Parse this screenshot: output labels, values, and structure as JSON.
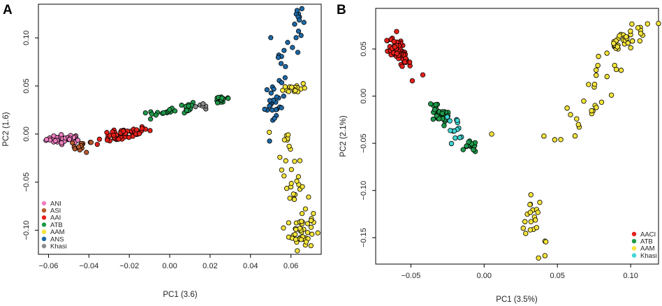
{
  "figure": {
    "panel_labels": [
      "A",
      "B"
    ]
  },
  "chart_data": [
    {
      "type": "scatter",
      "panel": "A",
      "xlabel": "PC1 (3.6)",
      "ylabel": "PC2 (1.6)",
      "xlim": [
        -0.065,
        0.075
      ],
      "ylim": [
        -0.125,
        0.135
      ],
      "xticks": [
        -0.06,
        -0.04,
        -0.02,
        0.0,
        0.02,
        0.04,
        0.06
      ],
      "xtick_labels": [
        "−0.06",
        "−0.04",
        "−0.02",
        "0.00",
        "0.02",
        "0.04",
        "0.06"
      ],
      "yticks": [
        -0.1,
        -0.05,
        0.0,
        0.05,
        0.1
      ],
      "ytick_labels": [
        "−0.10",
        "−0.05",
        "0.00",
        "0.05",
        "0.10"
      ],
      "legend_position": "bottom-left",
      "series": [
        {
          "name": "ANI",
          "color": "#f07fc1",
          "clusters": [
            {
              "cx": -0.052,
              "cy": -0.005,
              "sx": 0.0045,
              "sy": 0.0022,
              "n": 40,
              "trend": 0.05
            }
          ]
        },
        {
          "name": "ASI",
          "color": "#b85a2e",
          "clusters": [
            {
              "cx": -0.043,
              "cy": -0.013,
              "sx": 0.0025,
              "sy": 0.003,
              "n": 14,
              "trend": 0
            }
          ]
        },
        {
          "name": "AAI",
          "color": "#e8201b",
          "clusters": [
            {
              "cx": -0.0235,
              "cy": -0.001,
              "sx": 0.0065,
              "sy": 0.0028,
              "n": 55,
              "trend": 0.45
            }
          ]
        },
        {
          "name": "ATB",
          "color": "#1f9a4a",
          "clusters": [
            {
              "cx": -0.004,
              "cy": 0.022,
              "sx": 0.0035,
              "sy": 0.003,
              "n": 16,
              "trend": 0.4
            },
            {
              "cx": 0.007,
              "cy": 0.027,
              "sx": 0.003,
              "sy": 0.003,
              "n": 14,
              "trend": 0.3
            },
            {
              "cx": 0.026,
              "cy": 0.036,
              "sx": 0.0025,
              "sy": 0.0025,
              "n": 16,
              "trend": 0.2
            }
          ]
        },
        {
          "name": "AAM",
          "color": "#f5e43a",
          "clusters": [
            {
              "cx": 0.062,
              "cy": 0.048,
              "sx": 0.0028,
              "sy": 0.003,
              "n": 18,
              "trend": 0
            },
            {
              "cx": 0.058,
              "cy": -0.012,
              "sx": 0.0025,
              "sy": 0.012,
              "n": 12,
              "trend": 0
            },
            {
              "cx": 0.062,
              "cy": -0.06,
              "sx": 0.003,
              "sy": 0.014,
              "n": 20,
              "trend": 0
            },
            {
              "cx": 0.065,
              "cy": -0.1,
              "sx": 0.003,
              "sy": 0.01,
              "n": 45,
              "trend": 0
            }
          ]
        },
        {
          "name": "ANS",
          "color": "#1e6aa8",
          "clusters": [
            {
              "cx": 0.052,
              "cy": 0.03,
              "sx": 0.0025,
              "sy": 0.011,
              "n": 25,
              "trend": 0
            },
            {
              "cx": 0.057,
              "cy": 0.085,
              "sx": 0.004,
              "sy": 0.012,
              "n": 12,
              "trend": 0
            },
            {
              "cx": 0.064,
              "cy": 0.115,
              "sx": 0.0015,
              "sy": 0.007,
              "n": 12,
              "trend": 0
            }
          ]
        },
        {
          "name": "Khasi",
          "color": "#8c8c8c",
          "clusters": [
            {
              "cx": 0.016,
              "cy": 0.029,
              "sx": 0.002,
              "sy": 0.002,
              "n": 6,
              "trend": 0
            }
          ]
        }
      ]
    },
    {
      "type": "scatter",
      "panel": "B",
      "xlabel": "PC1 (3.5%)",
      "ylabel": "PC2 (2.1%)",
      "xlim": [
        -0.074,
        0.119
      ],
      "ylim": [
        -0.178,
        0.093
      ],
      "xticks": [
        -0.05,
        0.0,
        0.05,
        0.1
      ],
      "xtick_labels": [
        "−0.05",
        "0.00",
        "0.05",
        "0.10"
      ],
      "yticks": [
        -0.15,
        -0.1,
        -0.05,
        0.0,
        0.05
      ],
      "ytick_labels": [
        "−0.15",
        "−0.10",
        "−0.05",
        "0.00",
        "0.05"
      ],
      "legend_position": "bottom-right",
      "series": [
        {
          "name": "AACI",
          "color": "#e8201b",
          "clusters": [
            {
              "cx": -0.058,
              "cy": 0.046,
              "sx": 0.004,
              "sy": 0.006,
              "n": 70,
              "trend": -1.6
            },
            {
              "cx": -0.042,
              "cy": 0.024,
              "sx": 0.001,
              "sy": 0.001,
              "n": 1,
              "trend": 0
            }
          ]
        },
        {
          "name": "ATB",
          "color": "#1f9a4a",
          "clusters": [
            {
              "cx": -0.031,
              "cy": -0.02,
              "sx": 0.004,
              "sy": 0.005,
              "n": 30,
              "trend": -0.8
            },
            {
              "cx": -0.009,
              "cy": -0.054,
              "sx": 0.002,
              "sy": 0.003,
              "n": 15,
              "trend": 0
            }
          ]
        },
        {
          "name": "AAM",
          "color": "#f5e43a",
          "clusters": [
            {
              "cx": 0.098,
              "cy": 0.06,
              "sx": 0.009,
              "sy": 0.006,
              "n": 40,
              "trend": 0.6
            },
            {
              "cx": 0.075,
              "cy": 0.005,
              "sx": 0.012,
              "sy": 0.014,
              "n": 28,
              "trend": 1.8
            },
            {
              "cx": 0.035,
              "cy": -0.138,
              "sx": 0.005,
              "sy": 0.015,
              "n": 22,
              "trend": -3.5
            },
            {
              "cx": 0.005,
              "cy": -0.04,
              "sx": 0.0005,
              "sy": 0.0005,
              "n": 1,
              "trend": 0
            }
          ]
        },
        {
          "name": "Khasi",
          "color": "#3fd6d3",
          "clusters": [
            {
              "cx": -0.02,
              "cy": -0.032,
              "sx": 0.004,
              "sy": 0.005,
              "n": 14,
              "trend": -0.8
            }
          ]
        }
      ]
    }
  ]
}
